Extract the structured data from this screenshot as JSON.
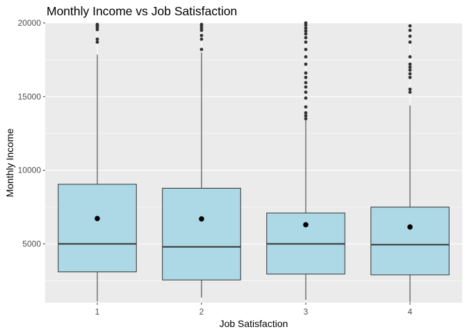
{
  "chart_data": {
    "type": "boxplot",
    "title": "Monthly Income vs Job Satisfaction",
    "xlabel": "Job Satisfaction",
    "ylabel": "Monthly Income",
    "categories": [
      "1",
      "2",
      "3",
      "4"
    ],
    "ylim": [
      1009,
      19999
    ],
    "yticks": [
      5000,
      10000,
      15000,
      20000
    ],
    "yticks_labels": [
      "5000",
      "10000",
      "15000",
      "20000"
    ],
    "grid": true,
    "box_color": "#add8e6",
    "panel_background": "#ebebeb",
    "boxes": [
      {
        "category": "1",
        "lower_whisker": 1090,
        "q1": 3100,
        "median": 5000,
        "q3": 9050,
        "upper_whisker": 17850,
        "mean": 6720,
        "outliers": [
          18700,
          18900,
          19550,
          19700,
          19800,
          19900
        ]
      },
      {
        "category": "2",
        "lower_whisker": 1350,
        "q1": 2550,
        "median": 4800,
        "q3": 8780,
        "upper_whisker": 18000,
        "mean": 6700,
        "outliers": [
          18200,
          18900,
          19150,
          19500,
          19650,
          19800,
          19900
        ]
      },
      {
        "category": "3",
        "lower_whisker": 1200,
        "q1": 2950,
        "median": 5000,
        "q3": 7100,
        "upper_whisker": 13400,
        "mean": 6300,
        "outliers": [
          13500,
          13700,
          13900,
          14300,
          14900,
          15300,
          15650,
          15950,
          16300,
          16600,
          17200,
          17700,
          18200,
          18700,
          19000,
          19250,
          19450,
          19650,
          19850,
          20000
        ]
      },
      {
        "category": "4",
        "lower_whisker": 1050,
        "q1": 2900,
        "median": 4950,
        "q3": 7500,
        "upper_whisker": 14400,
        "mean": 6150,
        "outliers": [
          15300,
          15500,
          16300,
          16550,
          16800,
          17000,
          17200,
          17700,
          18700,
          19100,
          19500,
          19800
        ]
      }
    ]
  }
}
